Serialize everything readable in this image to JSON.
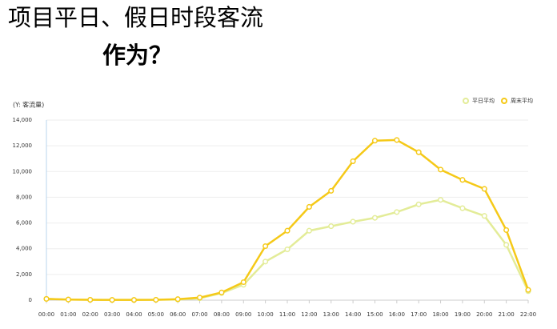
{
  "header": {
    "title": "项目平日、假日时段客流",
    "subtitle": "作为？"
  },
  "chart_data": {
    "type": "line",
    "y_label": "(Y: 客流量)",
    "categories": [
      "00:00",
      "01:00",
      "02:00",
      "03:00",
      "04:00",
      "05:00",
      "06:00",
      "07:00",
      "08:00",
      "09:00",
      "10:00",
      "11:00",
      "12:00",
      "13:00",
      "14:00",
      "15:00",
      "16:00",
      "17:00",
      "18:00",
      "19:00",
      "20:00",
      "21:00",
      "22:00"
    ],
    "series": [
      {
        "name": "平日平均",
        "color": "#e3ec98",
        "values": [
          100,
          50,
          30,
          20,
          20,
          30,
          50,
          150,
          550,
          1200,
          3000,
          3950,
          5400,
          5750,
          6100,
          6400,
          6850,
          7450,
          7800,
          7150,
          6550,
          4300,
          700
        ]
      },
      {
        "name": "周末平均",
        "color": "#f5c918",
        "values": [
          100,
          50,
          30,
          20,
          20,
          30,
          80,
          200,
          600,
          1400,
          4200,
          5400,
          7250,
          8500,
          10800,
          12400,
          12450,
          11500,
          10150,
          9350,
          8650,
          5450,
          800
        ]
      }
    ],
    "ylim": [
      0,
      14000
    ],
    "yticks": [
      0,
      {
        "value": 2000,
        "label": "2,000"
      },
      {
        "value": 4000,
        "label": "4,000"
      },
      {
        "value": 6000,
        "label": "6,000"
      },
      {
        "value": 8000,
        "label": "8,000"
      },
      {
        "value": 10000,
        "label": "10,000"
      },
      {
        "value": 12000,
        "label": "12,000"
      },
      {
        "value": 14000,
        "label": "14,000"
      }
    ],
    "grid": true,
    "legend": "top-right"
  }
}
